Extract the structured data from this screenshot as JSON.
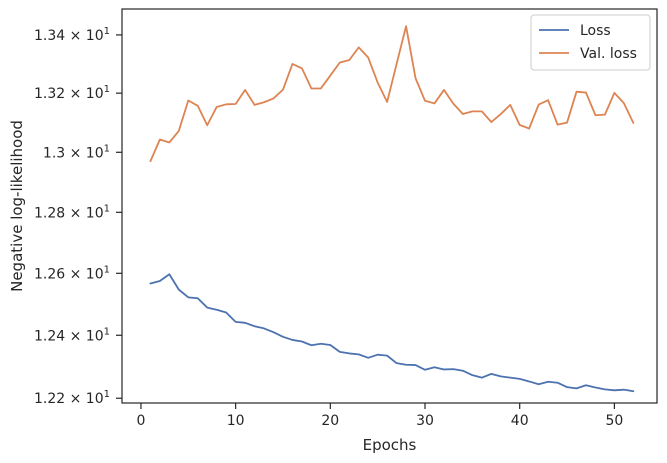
{
  "chart_data": {
    "type": "line",
    "xlabel": "Epochs",
    "ylabel": "Negative log-likelihood",
    "xlim": [
      -2,
      54.5
    ],
    "ylim": [
      12.185,
      13.49
    ],
    "y_scale": "log",
    "x_ticks": [
      {
        "value": 0,
        "label": "0"
      },
      {
        "value": 10,
        "label": "10"
      },
      {
        "value": 20,
        "label": "20"
      },
      {
        "value": 30,
        "label": "30"
      },
      {
        "value": 40,
        "label": "40"
      },
      {
        "value": 50,
        "label": "50"
      }
    ],
    "y_ticks": [
      {
        "value": 12.2,
        "mant": "1.22",
        "exp": "1"
      },
      {
        "value": 12.4,
        "mant": "1.24",
        "exp": "1"
      },
      {
        "value": 12.6,
        "mant": "1.26",
        "exp": "1"
      },
      {
        "value": 12.8,
        "mant": "1.28",
        "exp": "1"
      },
      {
        "value": 13.0,
        "mant": "1.3",
        "exp": "1"
      },
      {
        "value": 13.2,
        "mant": "1.32",
        "exp": "1"
      },
      {
        "value": 13.4,
        "mant": "1.34",
        "exp": "1"
      }
    ],
    "x": [
      1,
      2,
      3,
      4,
      5,
      6,
      7,
      8,
      9,
      10,
      11,
      12,
      13,
      14,
      15,
      16,
      17,
      18,
      19,
      20,
      21,
      22,
      23,
      24,
      25,
      26,
      27,
      28,
      29,
      30,
      31,
      32,
      33,
      34,
      35,
      36,
      37,
      38,
      39,
      40,
      41,
      42,
      43,
      44,
      45,
      46,
      47,
      48,
      49,
      50,
      51,
      52
    ],
    "series": [
      {
        "name": "Loss",
        "color": "#4c72b0",
        "values": [
          12.567,
          12.575,
          12.597,
          12.547,
          12.522,
          12.519,
          12.489,
          12.482,
          12.473,
          12.443,
          12.44,
          12.429,
          12.422,
          12.41,
          12.395,
          12.385,
          12.38,
          12.368,
          12.373,
          12.369,
          12.347,
          12.342,
          12.339,
          12.328,
          12.338,
          12.335,
          12.311,
          12.306,
          12.305,
          12.29,
          12.298,
          12.291,
          12.292,
          12.287,
          12.273,
          12.265,
          12.277,
          12.269,
          12.265,
          12.261,
          12.253,
          12.244,
          12.252,
          12.249,
          12.235,
          12.231,
          12.241,
          12.234,
          12.228,
          12.225,
          12.227,
          12.222
        ]
      },
      {
        "name": "Val. loss",
        "color": "#dd8452",
        "values": [
          12.97,
          13.043,
          13.033,
          13.072,
          13.175,
          13.157,
          13.091,
          13.153,
          13.162,
          13.163,
          13.211,
          13.16,
          13.169,
          13.182,
          13.212,
          13.3,
          13.285,
          13.216,
          13.216,
          13.26,
          13.305,
          13.313,
          13.357,
          13.322,
          13.236,
          13.17,
          13.3,
          13.43,
          13.251,
          13.174,
          13.165,
          13.211,
          13.164,
          13.129,
          13.138,
          13.138,
          13.102,
          13.129,
          13.16,
          13.092,
          13.08,
          13.161,
          13.176,
          13.093,
          13.1,
          13.205,
          13.202,
          13.125,
          13.127,
          13.201,
          13.166,
          13.099
        ]
      }
    ],
    "legend": {
      "position": "top-right"
    },
    "grid": false
  }
}
